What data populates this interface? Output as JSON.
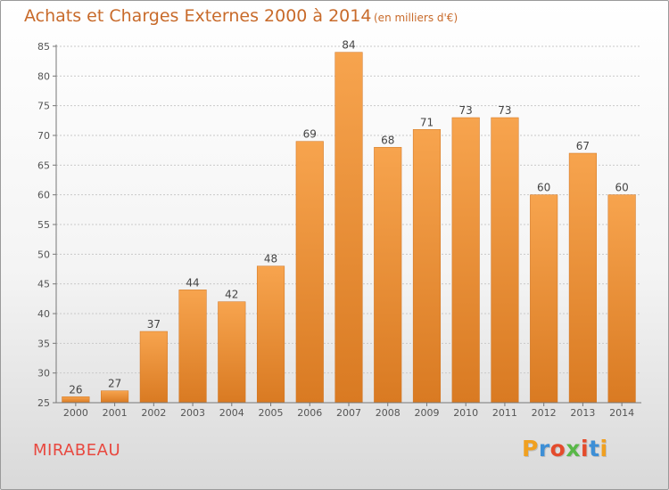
{
  "chart_data": {
    "type": "bar",
    "title": "Achats et Charges Externes 2000 à 2014",
    "subtitle": "(en milliers d'€)",
    "categories": [
      "2000",
      "2001",
      "2002",
      "2003",
      "2004",
      "2005",
      "2006",
      "2007",
      "2008",
      "2009",
      "2010",
      "2011",
      "2012",
      "2013",
      "2014"
    ],
    "values": [
      26,
      27,
      37,
      44,
      42,
      48,
      69,
      84,
      68,
      71,
      73,
      73,
      60,
      67,
      60
    ],
    "ylim": [
      25,
      85
    ],
    "yticks": [
      25,
      30,
      35,
      40,
      45,
      50,
      55,
      60,
      65,
      70,
      75,
      80,
      85
    ],
    "grid": true,
    "colors": {
      "bar_top": "#f7a44e",
      "bar_bottom": "#d97a22",
      "accent": "#c86a2a"
    }
  },
  "footer": {
    "commune": "MIRABEAU",
    "logo": "Proxiti"
  }
}
